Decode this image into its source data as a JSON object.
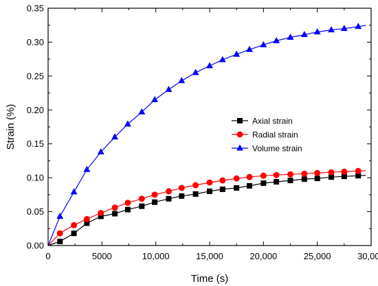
{
  "chart_data": {
    "type": "line",
    "xlabel": "Time (s)",
    "ylabel": "Strain (%)",
    "xlim": [
      0,
      30000
    ],
    "ylim": [
      0,
      0.35
    ],
    "xticks": [
      0,
      5000,
      10000,
      15000,
      20000,
      25000,
      30000
    ],
    "xtick_labels": [
      "0",
      "5000",
      "10,000",
      "15,000",
      "20,000",
      "25,000",
      "30,000"
    ],
    "yticks": [
      0,
      0.05,
      0.1,
      0.15,
      0.2,
      0.25,
      0.3,
      0.35
    ],
    "ytick_labels": [
      "0.00",
      "0.05",
      "0.10",
      "0.15",
      "0.20",
      "0.25",
      "0.30",
      "0.35"
    ],
    "grid": false,
    "legend_position": "center-right",
    "x": [
      1100,
      2400,
      3600,
      4900,
      6200,
      7400,
      8700,
      9900,
      11200,
      12400,
      13700,
      15000,
      16200,
      17500,
      18700,
      20000,
      21200,
      22500,
      23800,
      25000,
      26300,
      27500,
      28800
    ],
    "series": [
      {
        "name": "Axial strain",
        "color": "#000000",
        "marker": "square",
        "values": [
          0.006,
          0.018,
          0.033,
          0.043,
          0.047,
          0.053,
          0.058,
          0.064,
          0.069,
          0.073,
          0.076,
          0.08,
          0.083,
          0.085,
          0.088,
          0.092,
          0.094,
          0.096,
          0.098,
          0.099,
          0.101,
          0.102,
          0.103
        ]
      },
      {
        "name": "Radial strain",
        "color": "#ff0000",
        "marker": "circle",
        "values": [
          0.018,
          0.03,
          0.039,
          0.048,
          0.056,
          0.063,
          0.069,
          0.075,
          0.08,
          0.085,
          0.089,
          0.093,
          0.096,
          0.099,
          0.101,
          0.103,
          0.104,
          0.105,
          0.106,
          0.107,
          0.108,
          0.109,
          0.11
        ]
      },
      {
        "name": "Volume strain",
        "color": "#0000ff",
        "marker": "triangle",
        "values": [
          0.043,
          0.079,
          0.112,
          0.138,
          0.16,
          0.179,
          0.197,
          0.215,
          0.23,
          0.243,
          0.255,
          0.265,
          0.274,
          0.282,
          0.289,
          0.296,
          0.302,
          0.307,
          0.311,
          0.315,
          0.318,
          0.32,
          0.323
        ]
      }
    ]
  }
}
